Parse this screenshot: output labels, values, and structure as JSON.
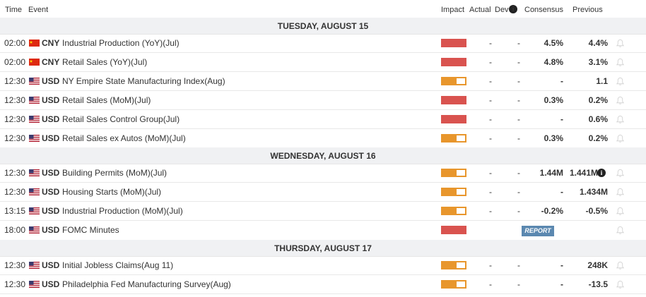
{
  "header": {
    "time": "Time",
    "event": "Event",
    "impact": "Impact",
    "actual": "Actual",
    "dev": "Dev",
    "consensus": "Consensus",
    "previous": "Previous"
  },
  "days": [
    {
      "label": "TUESDAY, AUGUST 15"
    },
    {
      "label": "WEDNESDAY, AUGUST 16"
    },
    {
      "label": "THURSDAY, AUGUST 17"
    }
  ],
  "events": [
    {
      "time": "02:00",
      "flag": "china-flag-icon",
      "currency": "CNY",
      "name": "Industrial Production (YoY)(Jul)",
      "impact": "high",
      "actual": "-",
      "dev": "-",
      "consensus": "4.5%",
      "previous": "4.4%"
    },
    {
      "time": "02:00",
      "flag": "china-flag-icon",
      "currency": "CNY",
      "name": "Retail Sales (YoY)(Jul)",
      "impact": "high",
      "actual": "-",
      "dev": "-",
      "consensus": "4.8%",
      "previous": "3.1%"
    },
    {
      "time": "12:30",
      "flag": "us-flag-icon",
      "currency": "USD",
      "name": "NY Empire State Manufacturing Index(Aug)",
      "impact": "medium",
      "actual": "-",
      "dev": "-",
      "consensus": "-",
      "previous": "1.1"
    },
    {
      "time": "12:30",
      "flag": "us-flag-icon",
      "currency": "USD",
      "name": "Retail Sales (MoM)(Jul)",
      "impact": "high",
      "actual": "-",
      "dev": "-",
      "consensus": "0.3%",
      "previous": "0.2%"
    },
    {
      "time": "12:30",
      "flag": "us-flag-icon",
      "currency": "USD",
      "name": "Retail Sales Control Group(Jul)",
      "impact": "high",
      "actual": "-",
      "dev": "-",
      "consensus": "-",
      "previous": "0.6%"
    },
    {
      "time": "12:30",
      "flag": "us-flag-icon",
      "currency": "USD",
      "name": "Retail Sales ex Autos (MoM)(Jul)",
      "impact": "medium",
      "actual": "-",
      "dev": "-",
      "consensus": "0.3%",
      "previous": "0.2%"
    },
    {
      "time": "12:30",
      "flag": "us-flag-icon",
      "currency": "USD",
      "name": "Building Permits (MoM)(Jul)",
      "impact": "medium",
      "actual": "-",
      "dev": "-",
      "consensus": "1.44M",
      "previous": "1.441M"
    },
    {
      "time": "12:30",
      "flag": "us-flag-icon",
      "currency": "USD",
      "name": "Housing Starts (MoM)(Jul)",
      "impact": "medium",
      "actual": "-",
      "dev": "-",
      "consensus": "-",
      "previous": "1.434M"
    },
    {
      "time": "13:15",
      "flag": "us-flag-icon",
      "currency": "USD",
      "name": "Industrial Production (MoM)(Jul)",
      "impact": "medium",
      "actual": "-",
      "dev": "-",
      "consensus": "-0.2%",
      "previous": "-0.5%"
    },
    {
      "time": "18:00",
      "flag": "us-flag-icon",
      "currency": "USD",
      "name": "FOMC Minutes",
      "impact": "high",
      "report": "REPORT"
    },
    {
      "time": "12:30",
      "flag": "us-flag-icon",
      "currency": "USD",
      "name": "Initial Jobless Claims(Aug 11)",
      "impact": "medium",
      "actual": "-",
      "dev": "-",
      "consensus": "-",
      "previous": "248K"
    },
    {
      "time": "12:30",
      "flag": "us-flag-icon",
      "currency": "USD",
      "name": "Philadelphia Fed Manufacturing Survey(Aug)",
      "impact": "medium",
      "actual": "-",
      "dev": "-",
      "consensus": "-",
      "previous": "-13.5"
    }
  ],
  "colors": {
    "high_impact": "#d9534f",
    "medium_impact": "#e8962c",
    "day_band": "#f0f1f3",
    "report_button": "#5b88b0"
  }
}
